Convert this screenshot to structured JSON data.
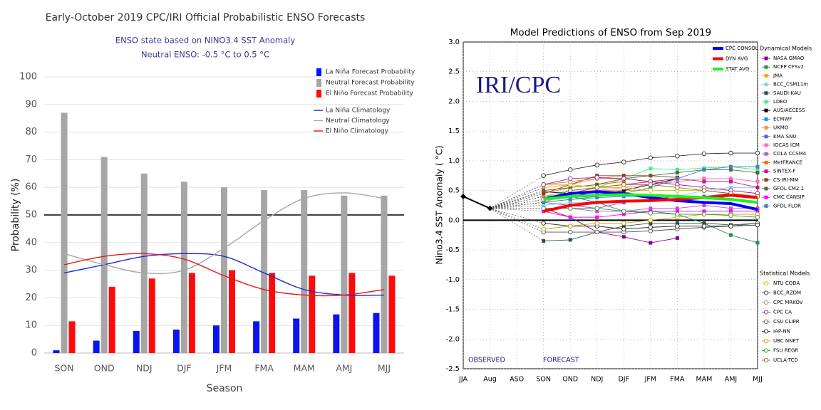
{
  "chart_data": [
    {
      "type": "bar",
      "title": "Early-October 2019 CPC/IRI Official Probabilistic ENSO Forecasts",
      "subtitle": [
        "ENSO state based on NINO3.4 SST Anomaly",
        "Neutral ENSO: -0.5 °C to 0.5 °C"
      ],
      "x_label": "Season",
      "y_label": "Probability (%)",
      "categories": [
        "SON",
        "OND",
        "NDJ",
        "DJF",
        "JFM",
        "FMA",
        "MAM",
        "AMJ",
        "MJJ"
      ],
      "ylim": [
        0,
        100
      ],
      "yticks": [
        0,
        10,
        20,
        30,
        40,
        50,
        60,
        70,
        80,
        90,
        100
      ],
      "grid": true,
      "reference_line": 50,
      "series": [
        {
          "name": "La Niña Forecast Probability",
          "type": "bar",
          "color": "#0a14f0",
          "values": [
            1,
            4.5,
            8,
            8.5,
            10,
            11.5,
            12.5,
            14,
            14.5
          ]
        },
        {
          "name": "Neutral Forecast Probability",
          "type": "bar",
          "color": "#a6a6a6",
          "values": [
            87,
            71,
            65,
            62,
            60,
            59,
            59,
            57,
            57
          ]
        },
        {
          "name": "El Niño Forecast Probability",
          "type": "bar",
          "color": "#ff0a0a",
          "values": [
            11.5,
            24,
            27,
            29,
            30,
            29,
            28,
            29,
            28
          ]
        },
        {
          "name": "La Niña Climatology",
          "type": "line",
          "color": "#1a2ad8",
          "values": [
            29,
            32,
            35,
            36,
            35,
            29,
            23,
            21,
            21
          ]
        },
        {
          "name": "Neutral Climatology",
          "type": "line",
          "color": "#a6a6a6",
          "values": [
            36,
            32,
            29,
            30,
            38,
            48,
            56,
            58,
            56
          ]
        },
        {
          "name": "El Niño Climatology",
          "type": "line",
          "color": "#e81818",
          "values": [
            32,
            35,
            36,
            34,
            28,
            23,
            21,
            21,
            23
          ]
        }
      ]
    },
    {
      "type": "line",
      "title": "Model Predictions of ENSO from Sep 2019",
      "y_label": "Nino3.4 SST Anomaly ( °C)",
      "annotations": [
        "IRI/CPC",
        "OBSERVED",
        "FORECAST"
      ],
      "categories": [
        "JJA",
        "Aug",
        "ASO",
        "SON",
        "OND",
        "NDJ",
        "DJF",
        "JFM",
        "FMA",
        "MAM",
        "AMJ",
        "MJJ"
      ],
      "ylim": [
        -2.5,
        3.0
      ],
      "yticks": [
        {
          "value": -2.5,
          "label": "-2.5"
        },
        {
          "value": -2,
          "label": "-2.0"
        },
        {
          "value": -1.5,
          "label": "-1.5"
        },
        {
          "value": -1,
          "label": "-1.0"
        },
        {
          "value": -0.5,
          "label": "-0.5"
        },
        {
          "value": 0,
          "label": "0.0"
        },
        {
          "value": 0.5,
          "label": "0.5"
        },
        {
          "value": 1,
          "label": "1.0"
        },
        {
          "value": 1.5,
          "label": "1.5"
        },
        {
          "value": 2,
          "label": "2.0"
        },
        {
          "value": 2.5,
          "label": "2.5"
        },
        {
          "value": 3,
          "label": "3.0"
        }
      ],
      "grid": true,
      "reference_line": 0,
      "observed": {
        "color": "#000000",
        "values": [
          0.4,
          0.2,
          null,
          null,
          null,
          null,
          null,
          null,
          null,
          null,
          null,
          null
        ]
      },
      "consensus": [
        {
          "name": "CPC CONSOL",
          "color": "#0000ff",
          "values": [
            null,
            null,
            null,
            0.35,
            0.45,
            0.48,
            0.45,
            0.38,
            0.33,
            0.3,
            0.28,
            0.18
          ]
        },
        {
          "name": "DYN AVG",
          "color": "#ff0000",
          "values": [
            null,
            null,
            null,
            0.15,
            0.25,
            0.3,
            0.32,
            0.33,
            0.35,
            0.38,
            0.42,
            0.38
          ]
        },
        {
          "name": "STAT AVG",
          "color": "#22ee22",
          "values": [
            null,
            null,
            null,
            0.35,
            0.4,
            0.42,
            0.43,
            0.42,
            0.4,
            0.38,
            0.35,
            0.3
          ]
        }
      ],
      "dynamical": {
        "title": "Dynamical Models",
        "marker": "square",
        "series": [
          {
            "name": "NASA GMAO",
            "color": "#8b008b",
            "values": [
              null,
              null,
              null,
              0.2,
              0.05,
              -0.2,
              -0.28,
              -0.38,
              -0.3,
              null,
              null,
              null
            ]
          },
          {
            "name": "NCEP CFSv2",
            "color": "#2e8b57",
            "values": [
              null,
              null,
              null,
              0.4,
              0.4,
              0.3,
              0.15,
              0.15,
              0.1,
              -0.05,
              -0.25,
              -0.38
            ]
          },
          {
            "name": "JMA",
            "color": "#ffa500",
            "values": [
              null,
              null,
              null,
              0.3,
              0.45,
              0.5,
              0.5,
              0.5,
              null,
              null,
              null,
              null
            ]
          },
          {
            "name": "BCC_CSM11m",
            "color": "#87cefa",
            "values": [
              null,
              null,
              null,
              0.25,
              0.3,
              0.3,
              0.3,
              0.35,
              0.4,
              0.5,
              0.55,
              0.55
            ]
          },
          {
            "name": "SAUDI-KAU",
            "color": "#2f4f4f",
            "values": [
              null,
              null,
              null,
              -0.35,
              -0.33,
              -0.2,
              -0.1,
              -0.05,
              -0.05,
              -0.05,
              -0.08,
              -0.05
            ]
          },
          {
            "name": "LDEO",
            "color": "#3cf08c",
            "values": [
              null,
              null,
              null,
              0.4,
              0.5,
              0.55,
              0.7,
              0.87,
              0.85,
              0.88,
              0.9,
              0.85
            ]
          },
          {
            "name": "AUS/ACCESS",
            "color": "#000000",
            "values": [
              null,
              null,
              null,
              0.48,
              0.45,
              0.42,
              0.5,
              0.6,
              0.7,
              null,
              null,
              null
            ]
          },
          {
            "name": "ECMWF",
            "color": "#1e90ff",
            "values": [
              null,
              null,
              null,
              0.3,
              0.35,
              0.38,
              0.4,
              0.4,
              null,
              null,
              null,
              null
            ]
          },
          {
            "name": "UKMO",
            "color": "#ff8c42",
            "values": [
              null,
              null,
              null,
              0.55,
              0.6,
              0.7,
              0.75,
              null,
              null,
              null,
              null,
              null
            ]
          },
          {
            "name": "KMA SNU",
            "color": "#6a5acd",
            "values": [
              null,
              null,
              null,
              0.3,
              0.25,
              0.2,
              0.3,
              0.35,
              0.4,
              0.4,
              0.45,
              0.4
            ]
          },
          {
            "name": "IOCAS ICM",
            "color": "#ff69b4",
            "values": [
              null,
              null,
              null,
              0.4,
              0.45,
              0.5,
              0.55,
              0.6,
              0.65,
              0.7,
              0.7,
              0.65
            ]
          },
          {
            "name": "COLA CCSM4",
            "color": "#ba55d3",
            "values": [
              null,
              null,
              null,
              0.2,
              0.2,
              0.15,
              0.15,
              0.2,
              0.2,
              0.25,
              0.2,
              0.2
            ]
          },
          {
            "name": "MetFRANCE",
            "color": "#ff6600",
            "values": [
              null,
              null,
              null,
              0.45,
              0.55,
              0.6,
              0.65,
              null,
              null,
              null,
              null,
              null
            ]
          },
          {
            "name": "SINTEX-F",
            "color": "#c71585",
            "values": [
              null,
              null,
              null,
              0.35,
              0.45,
              0.55,
              0.6,
              0.65,
              0.7,
              0.65,
              0.65,
              0.55
            ]
          },
          {
            "name": "CS-IRI-MM",
            "color": "#8b4513",
            "values": [
              null,
              null,
              null,
              0.45,
              0.6,
              0.75,
              0.75,
              0.75,
              0.72,
              null,
              null,
              null
            ]
          },
          {
            "name": "GFDL CM2.1",
            "color": "#556b2f",
            "values": [
              null,
              null,
              null,
              0.5,
              0.55,
              0.6,
              0.7,
              0.75,
              0.8,
              0.85,
              0.85,
              0.8
            ]
          },
          {
            "name": "CMC CANSIP",
            "color": "#ff00ff",
            "values": [
              null,
              null,
              null,
              0.15,
              0.05,
              0.05,
              0.1,
              0.15,
              0.15,
              0.15,
              0.15,
              0.15
            ]
          },
          {
            "name": "GFDL FLOR",
            "color": "#4682b4",
            "values": [
              null,
              null,
              null,
              0.3,
              0.35,
              0.4,
              0.45,
              0.55,
              0.7,
              0.85,
              0.9,
              0.9
            ]
          }
        ]
      },
      "statistical": {
        "title": "Statistical Models",
        "marker": "circle",
        "series": [
          {
            "name": "NTU CODA",
            "color": "#cccc00",
            "values": [
              null,
              null,
              null,
              0.6,
              0.6,
              0.55,
              0.55,
              0.5,
              0.5,
              0.5,
              0.45,
              0.4
            ]
          },
          {
            "name": "BCC_RZDM",
            "color": "#333333",
            "values": [
              null,
              null,
              null,
              0.75,
              0.85,
              0.93,
              0.98,
              1.05,
              1.08,
              1.12,
              1.13,
              1.13
            ]
          },
          {
            "name": "CPC MRKOV",
            "color": "#e08040",
            "values": [
              null,
              null,
              null,
              0.6,
              0.65,
              0.7,
              0.7,
              0.65,
              0.6,
              0.55,
              0.5,
              0.45
            ]
          },
          {
            "name": "CPC CA",
            "color": "#a020a0",
            "values": [
              null,
              null,
              null,
              0.6,
              0.7,
              0.72,
              0.7,
              0.65,
              0.6,
              0.55,
              0.5,
              0.45
            ]
          },
          {
            "name": "CSU CLIPR",
            "color": "#555555",
            "values": [
              null,
              null,
              null,
              -0.2,
              -0.2,
              -0.2,
              -0.2,
              -0.18,
              -0.15,
              -0.12,
              -0.1,
              -0.05
            ]
          },
          {
            "name": "IAP-NN",
            "color": "#222222",
            "values": [
              null,
              null,
              null,
              -0.05,
              -0.1,
              -0.1,
              -0.15,
              -0.12,
              -0.1,
              -0.1,
              -0.1,
              -0.08
            ]
          },
          {
            "name": "UBC NNET",
            "color": "#c8a000",
            "values": [
              null,
              null,
              null,
              -0.15,
              -0.1,
              -0.05,
              -0.05,
              0.0,
              0.05,
              0.1,
              0.1,
              0.1
            ]
          },
          {
            "name": "FSU REGR",
            "color": "#339933",
            "values": [
              null,
              null,
              null,
              0.2,
              0.2,
              0.2,
              0.15,
              0.12,
              0.1,
              0.1,
              0.08,
              0.05
            ]
          },
          {
            "name": "UCLA-TCD",
            "color": "#8b6914",
            "values": [
              null,
              null,
              null,
              0.35,
              0.5,
              0.55,
              0.6,
              0.6,
              0.55,
              0.5,
              0.45,
              0.4
            ]
          }
        ]
      }
    }
  ]
}
